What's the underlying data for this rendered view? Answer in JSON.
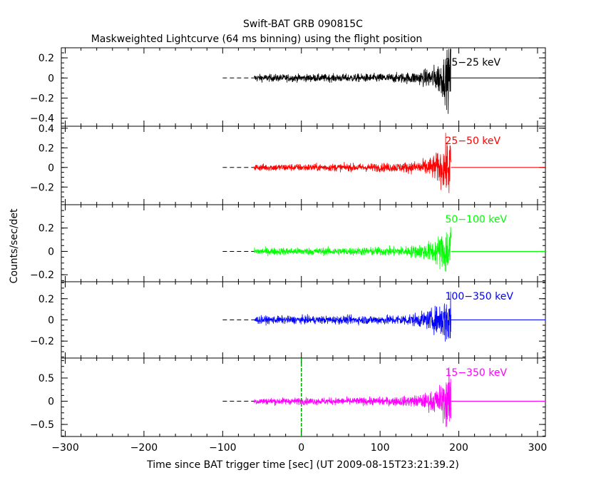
{
  "title": "Swift-BAT GRB 090815C",
  "subtitle": "Maskweighted Lightcurve (64 ms binning) using the flight position",
  "xlabel": "Time since BAT trigger time [sec] (UT 2009-08-15T23:21:39.2)",
  "ylabel": "Counts/sec/det",
  "chart_data": {
    "type": "line",
    "x_range": [
      -305,
      310
    ],
    "x_ticks": [
      -300,
      -200,
      -100,
      0,
      100,
      200,
      300
    ],
    "x_tick_labels": [
      "−300",
      "−200",
      "−100",
      "0",
      "100",
      "200",
      "300"
    ],
    "trigger_time": 0,
    "data_start": -60,
    "data_end": 190,
    "panels": [
      {
        "label": "15−25 keV",
        "color": "#000000",
        "ylim": [
          -0.48,
          0.3
        ],
        "y_ticks": [
          0.2,
          0,
          -0.2,
          -0.4
        ],
        "y_tick_labels": [
          "0.2",
          "0",
          "−0.2",
          "−0.4"
        ],
        "noise_amplitude": 0.035,
        "peak_amplitude": 0.28,
        "peak_time": 190
      },
      {
        "label": "25−50 keV",
        "color": "#ff0000",
        "ylim": [
          -0.38,
          0.42
        ],
        "y_ticks": [
          0.4,
          0.2,
          0,
          -0.2
        ],
        "y_tick_labels": [
          "0.4",
          "0.2",
          "0",
          "−0.2"
        ],
        "noise_amplitude": 0.035,
        "peak_amplitude": 0.3,
        "peak_time": 190
      },
      {
        "label": "50−100 keV",
        "color": "#00ff00",
        "ylim": [
          -0.26,
          0.4
        ],
        "y_ticks": [
          0.2,
          0,
          -0.2
        ],
        "y_tick_labels": [
          "0.2",
          "0",
          "−0.2"
        ],
        "noise_amplitude": 0.03,
        "peak_amplitude": 0.25,
        "peak_time": 190
      },
      {
        "label": "100−350 keV",
        "color": "#0000ff",
        "ylim": [
          -0.36,
          0.36
        ],
        "y_ticks": [
          0.2,
          0,
          -0.2
        ],
        "y_tick_labels": [
          "0.2",
          "0",
          "−0.2"
        ],
        "noise_amplitude": 0.035,
        "peak_amplitude": 0.25,
        "peak_time": 190
      },
      {
        "label": "15−350 keV",
        "color": "#ff00ff",
        "ylim": [
          -0.76,
          0.93
        ],
        "y_ticks": [
          0.5,
          0,
          -0.5
        ],
        "y_tick_labels": [
          "0.5",
          "0",
          "−0.5"
        ],
        "noise_amplitude": 0.07,
        "peak_amplitude": 0.6,
        "peak_time": 190
      }
    ]
  },
  "colors": {
    "axis": "#000000",
    "trigger_line": "#00aa00",
    "background": "#ffffff"
  }
}
